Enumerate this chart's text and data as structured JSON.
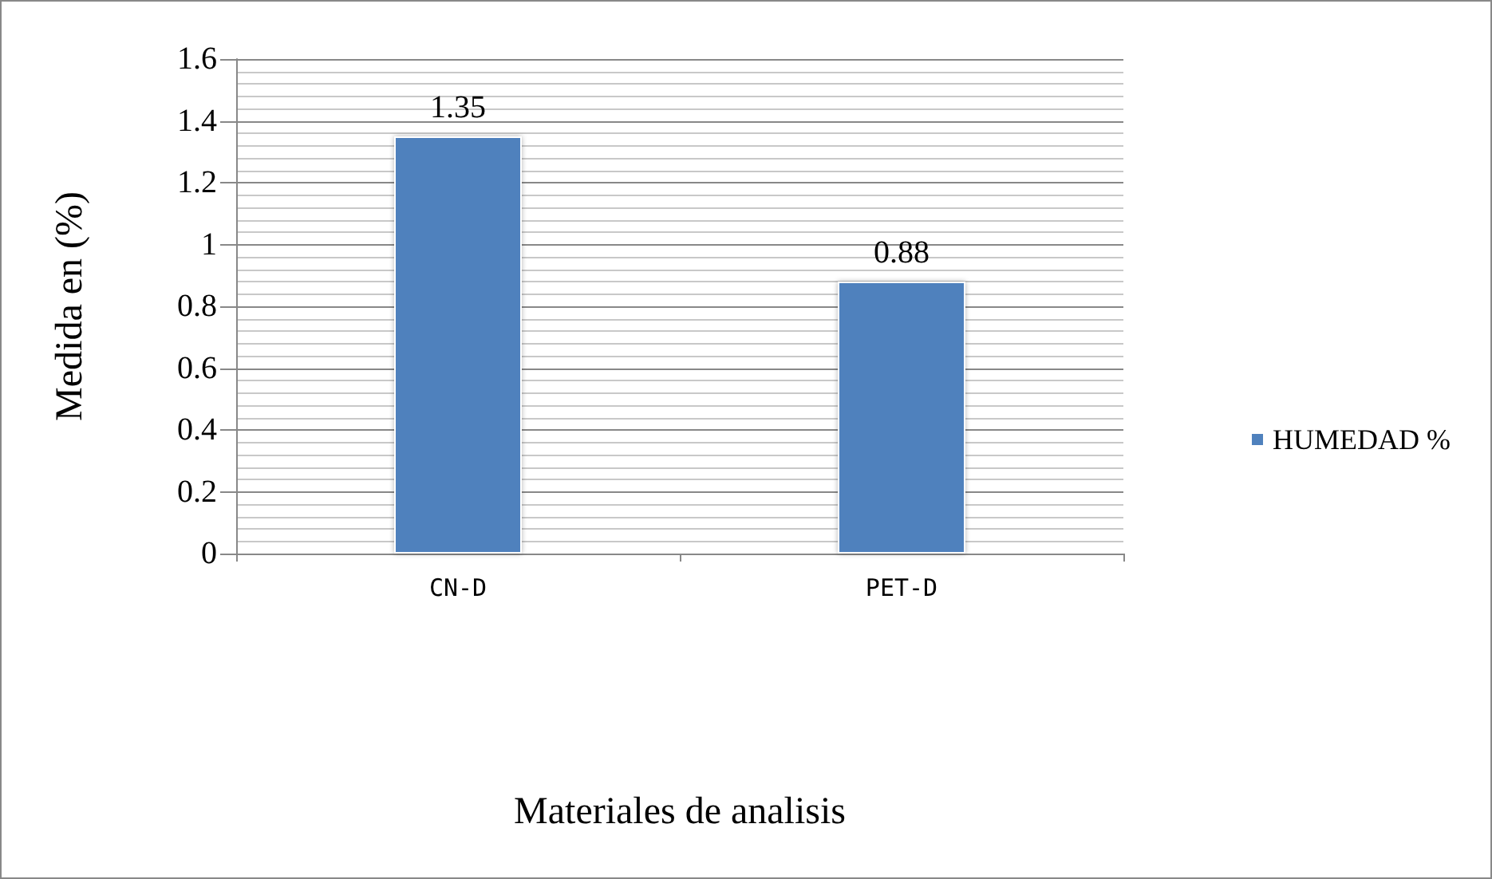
{
  "chart_data": {
    "type": "bar",
    "xlabel": "Materiales de analisis",
    "ylabel": "Medida en (%)",
    "categories": [
      "CN-D",
      "PET-D"
    ],
    "series": [
      {
        "name": "HUMEDAD %",
        "color": "#4f81bd",
        "values": [
          1.35,
          0.88
        ]
      }
    ],
    "ylim": [
      0,
      1.6
    ],
    "yticks": [
      0,
      0.2,
      0.4,
      0.6,
      0.8,
      1,
      1.2,
      1.4,
      1.6
    ],
    "grid": "y",
    "legend": "right",
    "data_labels": true
  }
}
